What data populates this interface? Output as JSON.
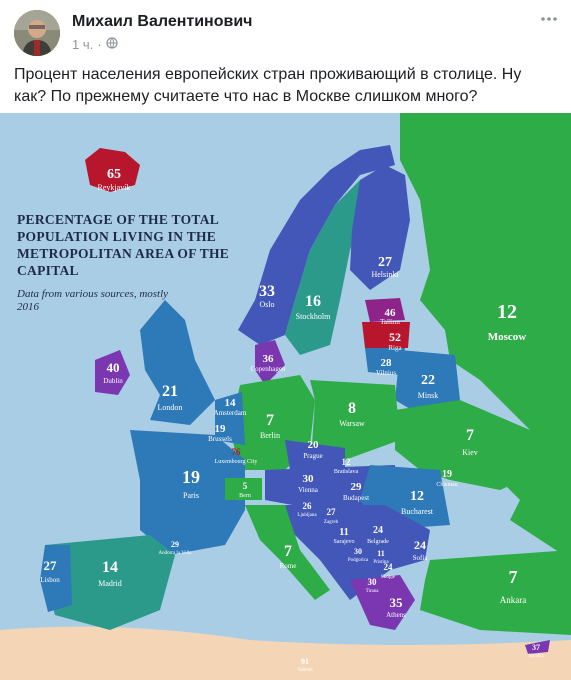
{
  "post": {
    "author": "Михаил Валентинович",
    "time": "1 ч.",
    "privacy_icon": "globe-icon",
    "more_icon": "more-icon",
    "text": "Процент населения европейских стран проживающий в столице. Ну как? По прежнему считаете что нас в Москве слишком много?"
  },
  "map": {
    "title": "PERCENTAGE OF THE TOTAL POPULATION LIVING IN THE METROPOLITAN AREA OF THE CAPITAL",
    "subtitle": "Data from various sources, mostly 2016",
    "colors": {
      "sea": "#a9cde4",
      "green": "#2eac47",
      "teal": "#2b9a8b",
      "steel_blue": "#2e79b8",
      "indigo": "#4257b8",
      "purple": "#7a37b0",
      "magenta": "#8e2489",
      "red": "#b8162c",
      "africa": "#f4d6b7"
    },
    "capitals": [
      {
        "city": "Reykjavík",
        "value": "65"
      },
      {
        "city": "Oslo",
        "value": "33"
      },
      {
        "city": "Stockholm",
        "value": "16"
      },
      {
        "city": "Helsinki",
        "value": "27"
      },
      {
        "city": "Tallinn",
        "value": "46"
      },
      {
        "city": "Riga",
        "value": "52"
      },
      {
        "city": "Moscow",
        "value": "12"
      },
      {
        "city": "Vilnius",
        "value": "28"
      },
      {
        "city": "Minsk",
        "value": "22"
      },
      {
        "city": "Copenhagen",
        "value": "36"
      },
      {
        "city": "Dublin",
        "value": "40"
      },
      {
        "city": "London",
        "value": "21"
      },
      {
        "city": "Amsterdam",
        "value": "14"
      },
      {
        "city": "Brussels",
        "value": "19"
      },
      {
        "city": "Luxembourg City",
        "value": "76"
      },
      {
        "city": "Berlin",
        "value": "7"
      },
      {
        "city": "Warsaw",
        "value": "8"
      },
      {
        "city": "Kiev",
        "value": "7"
      },
      {
        "city": "Prague",
        "value": "20"
      },
      {
        "city": "Bratislava",
        "value": "12"
      },
      {
        "city": "Chisinau",
        "value": "19"
      },
      {
        "city": "Paris",
        "value": "19"
      },
      {
        "city": "Bern",
        "value": "5"
      },
      {
        "city": "Vienna",
        "value": "30"
      },
      {
        "city": "Budapest",
        "value": "29"
      },
      {
        "city": "Bucharest",
        "value": "12"
      },
      {
        "city": "Ljubljana",
        "value": "26"
      },
      {
        "city": "Zagreb",
        "value": "27"
      },
      {
        "city": "Sarajevo",
        "value": "11"
      },
      {
        "city": "Belgrade",
        "value": "24"
      },
      {
        "city": "Sofia",
        "value": "24"
      },
      {
        "city": "Podgorica",
        "value": "30"
      },
      {
        "city": "Pristina",
        "value": "11"
      },
      {
        "city": "Skopje",
        "value": "24"
      },
      {
        "city": "Tirana",
        "value": "30"
      },
      {
        "city": "Athens",
        "value": "35"
      },
      {
        "city": "Andorra la Vella",
        "value": "29"
      },
      {
        "city": "Lisbon",
        "value": "27"
      },
      {
        "city": "Madrid",
        "value": "14"
      },
      {
        "city": "Rome",
        "value": "7"
      },
      {
        "city": "Ankara",
        "value": "7"
      },
      {
        "city": "Valletta",
        "value": "91"
      },
      {
        "city": "Nicosia",
        "value": "37"
      }
    ]
  }
}
